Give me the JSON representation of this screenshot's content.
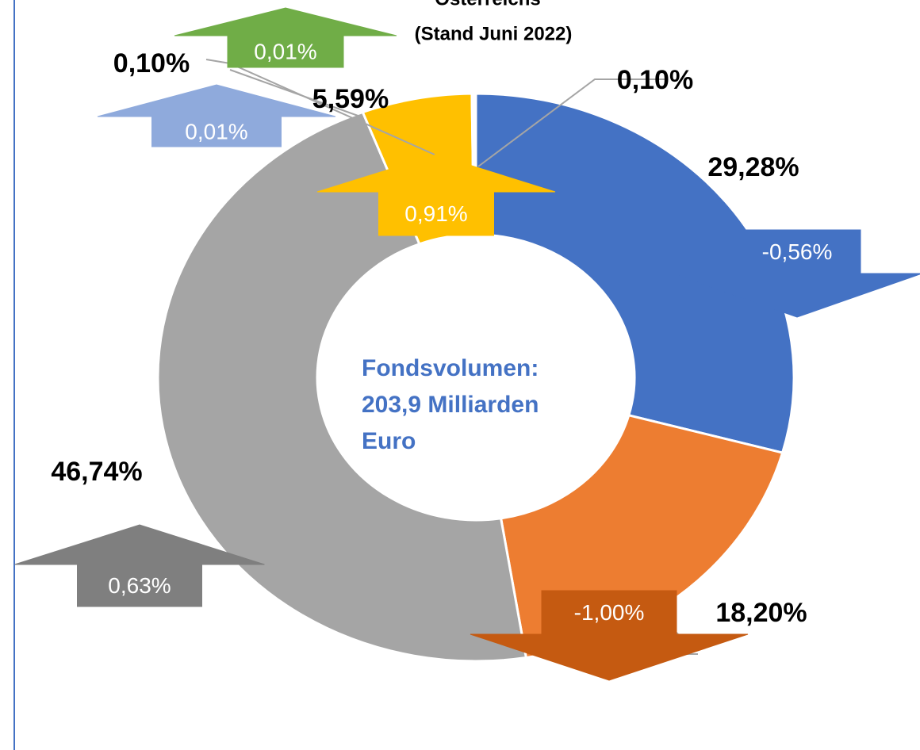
{
  "chart_data": {
    "type": "donut",
    "title": [
      "Österreichs",
      "(Stand Juni 2022)"
    ],
    "center_text": [
      "Fondsvolumen:",
      "203,9 Milliarden",
      "Euro"
    ],
    "values": [
      29.28,
      18.2,
      46.74,
      5.59,
      0.1,
      0.1
    ],
    "value_labels": [
      "29,28%",
      "18,20%",
      "46,74%",
      "5,59%",
      "0,10%",
      "0,10%"
    ],
    "colors": [
      "#4472c4",
      "#ed7d31",
      "#a5a5a5",
      "#ffc000",
      "#8faadc",
      "#70ad47"
    ],
    "changes": [
      -0.56,
      -1.0,
      0.63,
      0.91,
      0.01,
      0.01
    ],
    "change_labels": [
      "-0,56%",
      "-1,00%",
      "0,63%",
      "0,91%",
      "0,01%",
      "0,01%"
    ],
    "change_colors": [
      "#4472c4",
      "#c55a11",
      "#7f7f7f",
      "#ffc000",
      "#8faadc",
      "#70ad47"
    ]
  }
}
